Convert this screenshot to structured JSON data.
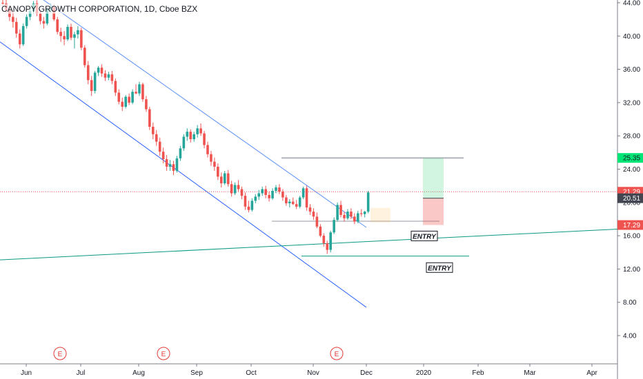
{
  "header": {
    "title": "CANOPY GROWTH CORPORATION, 1D, Cboe BZX"
  },
  "chart_data": {
    "type": "candlestick",
    "title": "CANOPY GROWTH CORPORATION, 1D, Cboe BZX",
    "y_axis": {
      "position": "right",
      "ylim": [
        2.0,
        44.5
      ],
      "ticks": [
        "4.00",
        "8.00",
        "12.00",
        "16.00",
        "20.00",
        "24.00",
        "28.00",
        "32.00",
        "36.00",
        "40.00",
        "44.00"
      ]
    },
    "x_axis": {
      "ticks": [
        "Jun",
        "Jul",
        "Aug",
        "Sep",
        "Oct",
        "Nov",
        "Dec",
        "2020",
        "Feb",
        "Mar",
        "Apr"
      ]
    },
    "price_labels": [
      {
        "value": "25.35",
        "color": "#00e676",
        "text_color": "#131722"
      },
      {
        "value": "21.29",
        "color": "#ef5350",
        "text_color": "#ffffff"
      },
      {
        "value": "20.51",
        "color": "#434651",
        "text_color": "#ffffff"
      },
      {
        "value": "17.29",
        "color": "#ef5350",
        "text_color": "#ffffff"
      }
    ],
    "annotations": [
      {
        "label": "ENTRY",
        "price": 17.3
      },
      {
        "label": "ENTRY",
        "price": 13.5
      }
    ],
    "earnings_markers": [
      "E",
      "E",
      "E"
    ],
    "candles": [
      [
        44.0,
        44.4,
        43.6,
        43.9
      ],
      [
        43.9,
        44.5,
        42.8,
        43.1
      ],
      [
        43.1,
        43.5,
        41.8,
        42.3
      ],
      [
        42.3,
        43.0,
        41.0,
        41.7
      ],
      [
        41.7,
        42.2,
        39.8,
        40.3
      ],
      [
        40.3,
        40.8,
        38.5,
        39.0
      ],
      [
        39.0,
        41.5,
        38.8,
        41.2
      ],
      [
        41.2,
        42.6,
        40.9,
        42.3
      ],
      [
        42.3,
        43.3,
        41.9,
        43.0
      ],
      [
        43.0,
        44.2,
        42.7,
        43.9
      ],
      [
        43.9,
        44.3,
        42.4,
        42.7
      ],
      [
        42.7,
        43.1,
        41.4,
        41.8
      ],
      [
        41.8,
        42.3,
        40.9,
        41.5
      ],
      [
        41.5,
        43.4,
        41.3,
        43.2
      ],
      [
        43.2,
        43.9,
        42.8,
        43.5
      ],
      [
        43.5,
        43.8,
        41.8,
        42.0
      ],
      [
        42.0,
        42.3,
        40.2,
        40.5
      ],
      [
        40.5,
        41.0,
        39.3,
        40.0
      ],
      [
        40.0,
        40.6,
        38.9,
        39.6
      ],
      [
        39.6,
        41.4,
        39.4,
        41.1
      ],
      [
        41.1,
        41.5,
        39.5,
        39.8
      ],
      [
        39.8,
        40.5,
        38.5,
        40.2
      ],
      [
        40.2,
        41.2,
        39.7,
        40.7
      ],
      [
        40.7,
        41.0,
        38.3,
        38.6
      ],
      [
        38.6,
        38.9,
        36.2,
        36.5
      ],
      [
        36.5,
        37.0,
        34.2,
        34.7
      ],
      [
        34.7,
        35.2,
        32.8,
        33.4
      ],
      [
        33.4,
        35.8,
        33.1,
        35.6
      ],
      [
        35.6,
        36.4,
        35.2,
        36.2
      ],
      [
        36.2,
        36.6,
        35.1,
        35.5
      ],
      [
        35.5,
        35.9,
        34.6,
        35.0
      ],
      [
        35.0,
        35.7,
        34.7,
        35.4
      ],
      [
        35.4,
        35.8,
        34.2,
        34.6
      ],
      [
        34.6,
        34.9,
        32.8,
        33.2
      ],
      [
        33.2,
        33.6,
        31.8,
        32.1
      ],
      [
        32.1,
        32.6,
        31.0,
        31.5
      ],
      [
        31.5,
        32.9,
        31.3,
        32.7
      ],
      [
        32.7,
        33.1,
        31.7,
        32.0
      ],
      [
        32.0,
        33.6,
        31.8,
        33.3
      ],
      [
        33.3,
        34.2,
        33.0,
        33.1
      ],
      [
        33.1,
        34.5,
        32.8,
        34.2
      ],
      [
        34.2,
        34.4,
        32.1,
        32.4
      ],
      [
        32.4,
        32.8,
        30.9,
        31.2
      ],
      [
        31.2,
        31.5,
        28.7,
        29.1
      ],
      [
        29.1,
        29.6,
        27.6,
        28.2
      ],
      [
        28.2,
        28.7,
        26.8,
        27.3
      ],
      [
        27.3,
        27.8,
        25.6,
        26.1
      ],
      [
        26.1,
        26.6,
        24.7,
        25.2
      ],
      [
        25.2,
        25.7,
        23.8,
        24.3
      ],
      [
        24.3,
        25.1,
        23.8,
        24.6
      ],
      [
        24.6,
        25.0,
        23.3,
        23.8
      ],
      [
        23.8,
        25.6,
        23.6,
        25.3
      ],
      [
        25.3,
        26.8,
        25.0,
        26.5
      ],
      [
        26.5,
        28.2,
        26.2,
        27.9
      ],
      [
        27.9,
        28.9,
        27.4,
        28.5
      ],
      [
        28.5,
        28.8,
        27.2,
        27.6
      ],
      [
        27.6,
        28.5,
        27.3,
        28.2
      ],
      [
        28.2,
        29.3,
        27.8,
        28.9
      ],
      [
        28.9,
        29.5,
        28.0,
        28.3
      ],
      [
        28.3,
        28.6,
        26.5,
        26.9
      ],
      [
        26.9,
        27.3,
        25.4,
        25.8
      ],
      [
        25.8,
        26.2,
        24.4,
        24.9
      ],
      [
        24.9,
        25.4,
        23.8,
        24.3
      ],
      [
        24.3,
        24.7,
        22.7,
        23.1
      ],
      [
        23.1,
        23.6,
        21.8,
        22.3
      ],
      [
        22.3,
        23.8,
        22.1,
        23.5
      ],
      [
        23.5,
        23.9,
        21.9,
        22.2
      ],
      [
        22.2,
        22.6,
        20.7,
        21.1
      ],
      [
        21.1,
        22.4,
        20.9,
        22.1
      ],
      [
        22.1,
        22.7,
        21.3,
        21.6
      ],
      [
        21.6,
        21.9,
        20.4,
        20.8
      ],
      [
        20.8,
        21.2,
        19.1,
        19.5
      ],
      [
        19.5,
        20.2,
        18.8,
        19.1
      ],
      [
        19.1,
        20.5,
        18.9,
        20.2
      ],
      [
        20.2,
        21.0,
        19.9,
        20.7
      ],
      [
        20.7,
        21.5,
        20.3,
        21.1
      ],
      [
        21.1,
        21.9,
        20.8,
        21.6
      ],
      [
        21.6,
        22.0,
        20.5,
        20.9
      ],
      [
        20.9,
        21.3,
        20.1,
        20.5
      ],
      [
        20.5,
        21.7,
        20.3,
        21.4
      ],
      [
        21.4,
        22.1,
        21.1,
        21.8
      ],
      [
        21.8,
        22.2,
        21.0,
        21.3
      ],
      [
        21.3,
        21.6,
        20.2,
        20.6
      ],
      [
        20.6,
        20.9,
        19.6,
        19.9
      ],
      [
        19.9,
        20.4,
        19.4,
        20.1
      ],
      [
        20.1,
        20.6,
        19.7,
        19.8
      ],
      [
        19.8,
        20.3,
        19.2,
        19.5
      ],
      [
        19.5,
        20.8,
        19.3,
        20.6
      ],
      [
        20.6,
        21.9,
        20.4,
        21.7
      ],
      [
        21.7,
        22.0,
        19.0,
        19.4
      ],
      [
        19.4,
        19.8,
        18.5,
        18.9
      ],
      [
        18.9,
        19.3,
        17.9,
        18.3
      ],
      [
        18.3,
        18.8,
        16.9,
        17.1
      ],
      [
        17.1,
        17.4,
        15.8,
        16.0
      ],
      [
        16.0,
        16.3,
        14.7,
        15.1
      ],
      [
        15.1,
        15.4,
        13.8,
        14.3
      ],
      [
        14.3,
        16.6,
        14.0,
        16.4
      ],
      [
        16.4,
        18.2,
        16.2,
        17.9
      ],
      [
        17.9,
        20.0,
        17.7,
        19.7
      ],
      [
        19.7,
        20.2,
        18.2,
        18.5
      ],
      [
        18.5,
        18.9,
        17.7,
        18.1
      ],
      [
        18.1,
        19.2,
        17.9,
        18.9
      ],
      [
        18.9,
        19.3,
        18.0,
        18.3
      ],
      [
        18.3,
        18.7,
        17.4,
        17.7
      ],
      [
        17.7,
        19.0,
        17.5,
        18.7
      ],
      [
        18.7,
        19.2,
        18.3,
        18.6
      ],
      [
        18.6,
        19.0,
        18.2,
        18.9
      ],
      [
        18.9,
        21.4,
        18.7,
        21.2
      ]
    ]
  }
}
